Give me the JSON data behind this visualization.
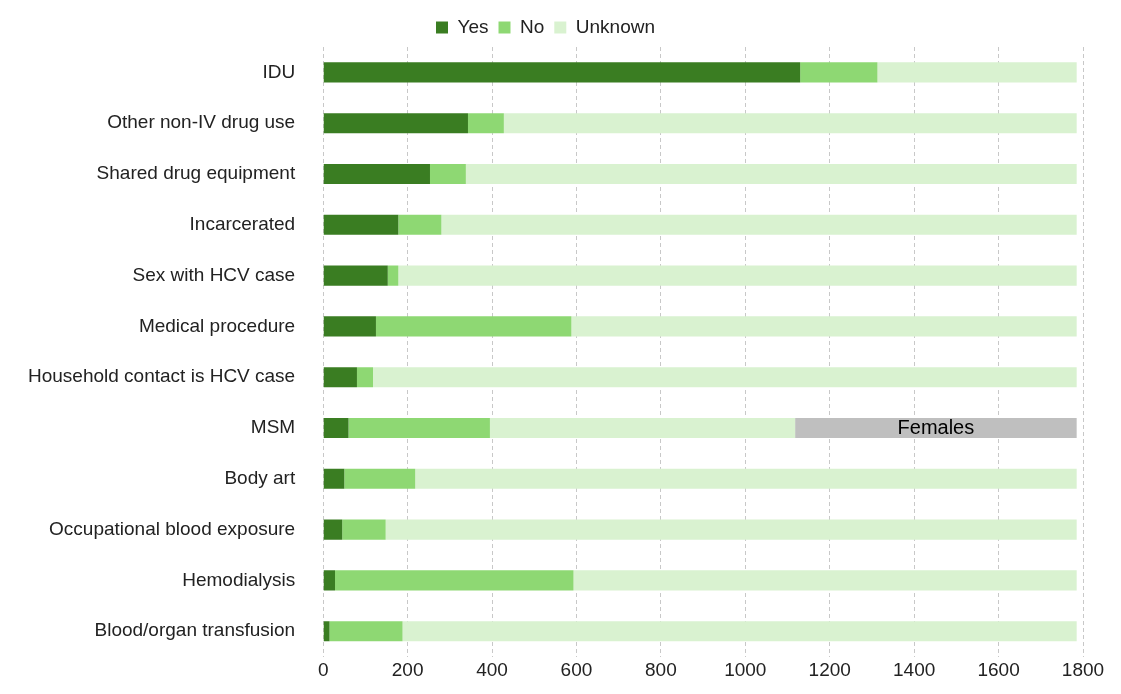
{
  "chart_data": {
    "type": "bar",
    "orientation": "horizontal",
    "stacked": true,
    "categories": [
      "IDU",
      "Other non-IV drug use",
      "Shared drug equipment",
      "Incarcerated",
      "Sex with HCV case",
      "Medical procedure",
      "Household contact is HCV case",
      "MSM",
      "Body art",
      "Occupational blood exposure",
      "Hemodialysis",
      "Blood/organ transfusion"
    ],
    "series": [
      {
        "name": "Yes",
        "color": "#3a7d22",
        "values": [
          1130,
          343,
          253,
          178,
          153,
          125,
          80,
          60,
          50,
          45,
          28,
          15
        ]
      },
      {
        "name": "No",
        "color": "#8ed873",
        "values": [
          183,
          85,
          85,
          102,
          25,
          463,
          38,
          335,
          168,
          103,
          565,
          173
        ]
      },
      {
        "name": "Unknown",
        "color": "#d9f2d0",
        "values": [
          472,
          1357,
          1447,
          1505,
          1607,
          1197,
          1667,
          723,
          1567,
          1637,
          1192,
          1597
        ]
      },
      {
        "name": "Females",
        "color": "#bfbfbf",
        "values": [
          null,
          null,
          null,
          null,
          null,
          null,
          null,
          667,
          null,
          null,
          null,
          null
        ]
      }
    ],
    "xlim": [
      0,
      1800
    ],
    "xticks": [
      0,
      200,
      400,
      600,
      800,
      1000,
      1200,
      1400,
      1600,
      1800
    ],
    "grid": "x",
    "legend": "top"
  }
}
